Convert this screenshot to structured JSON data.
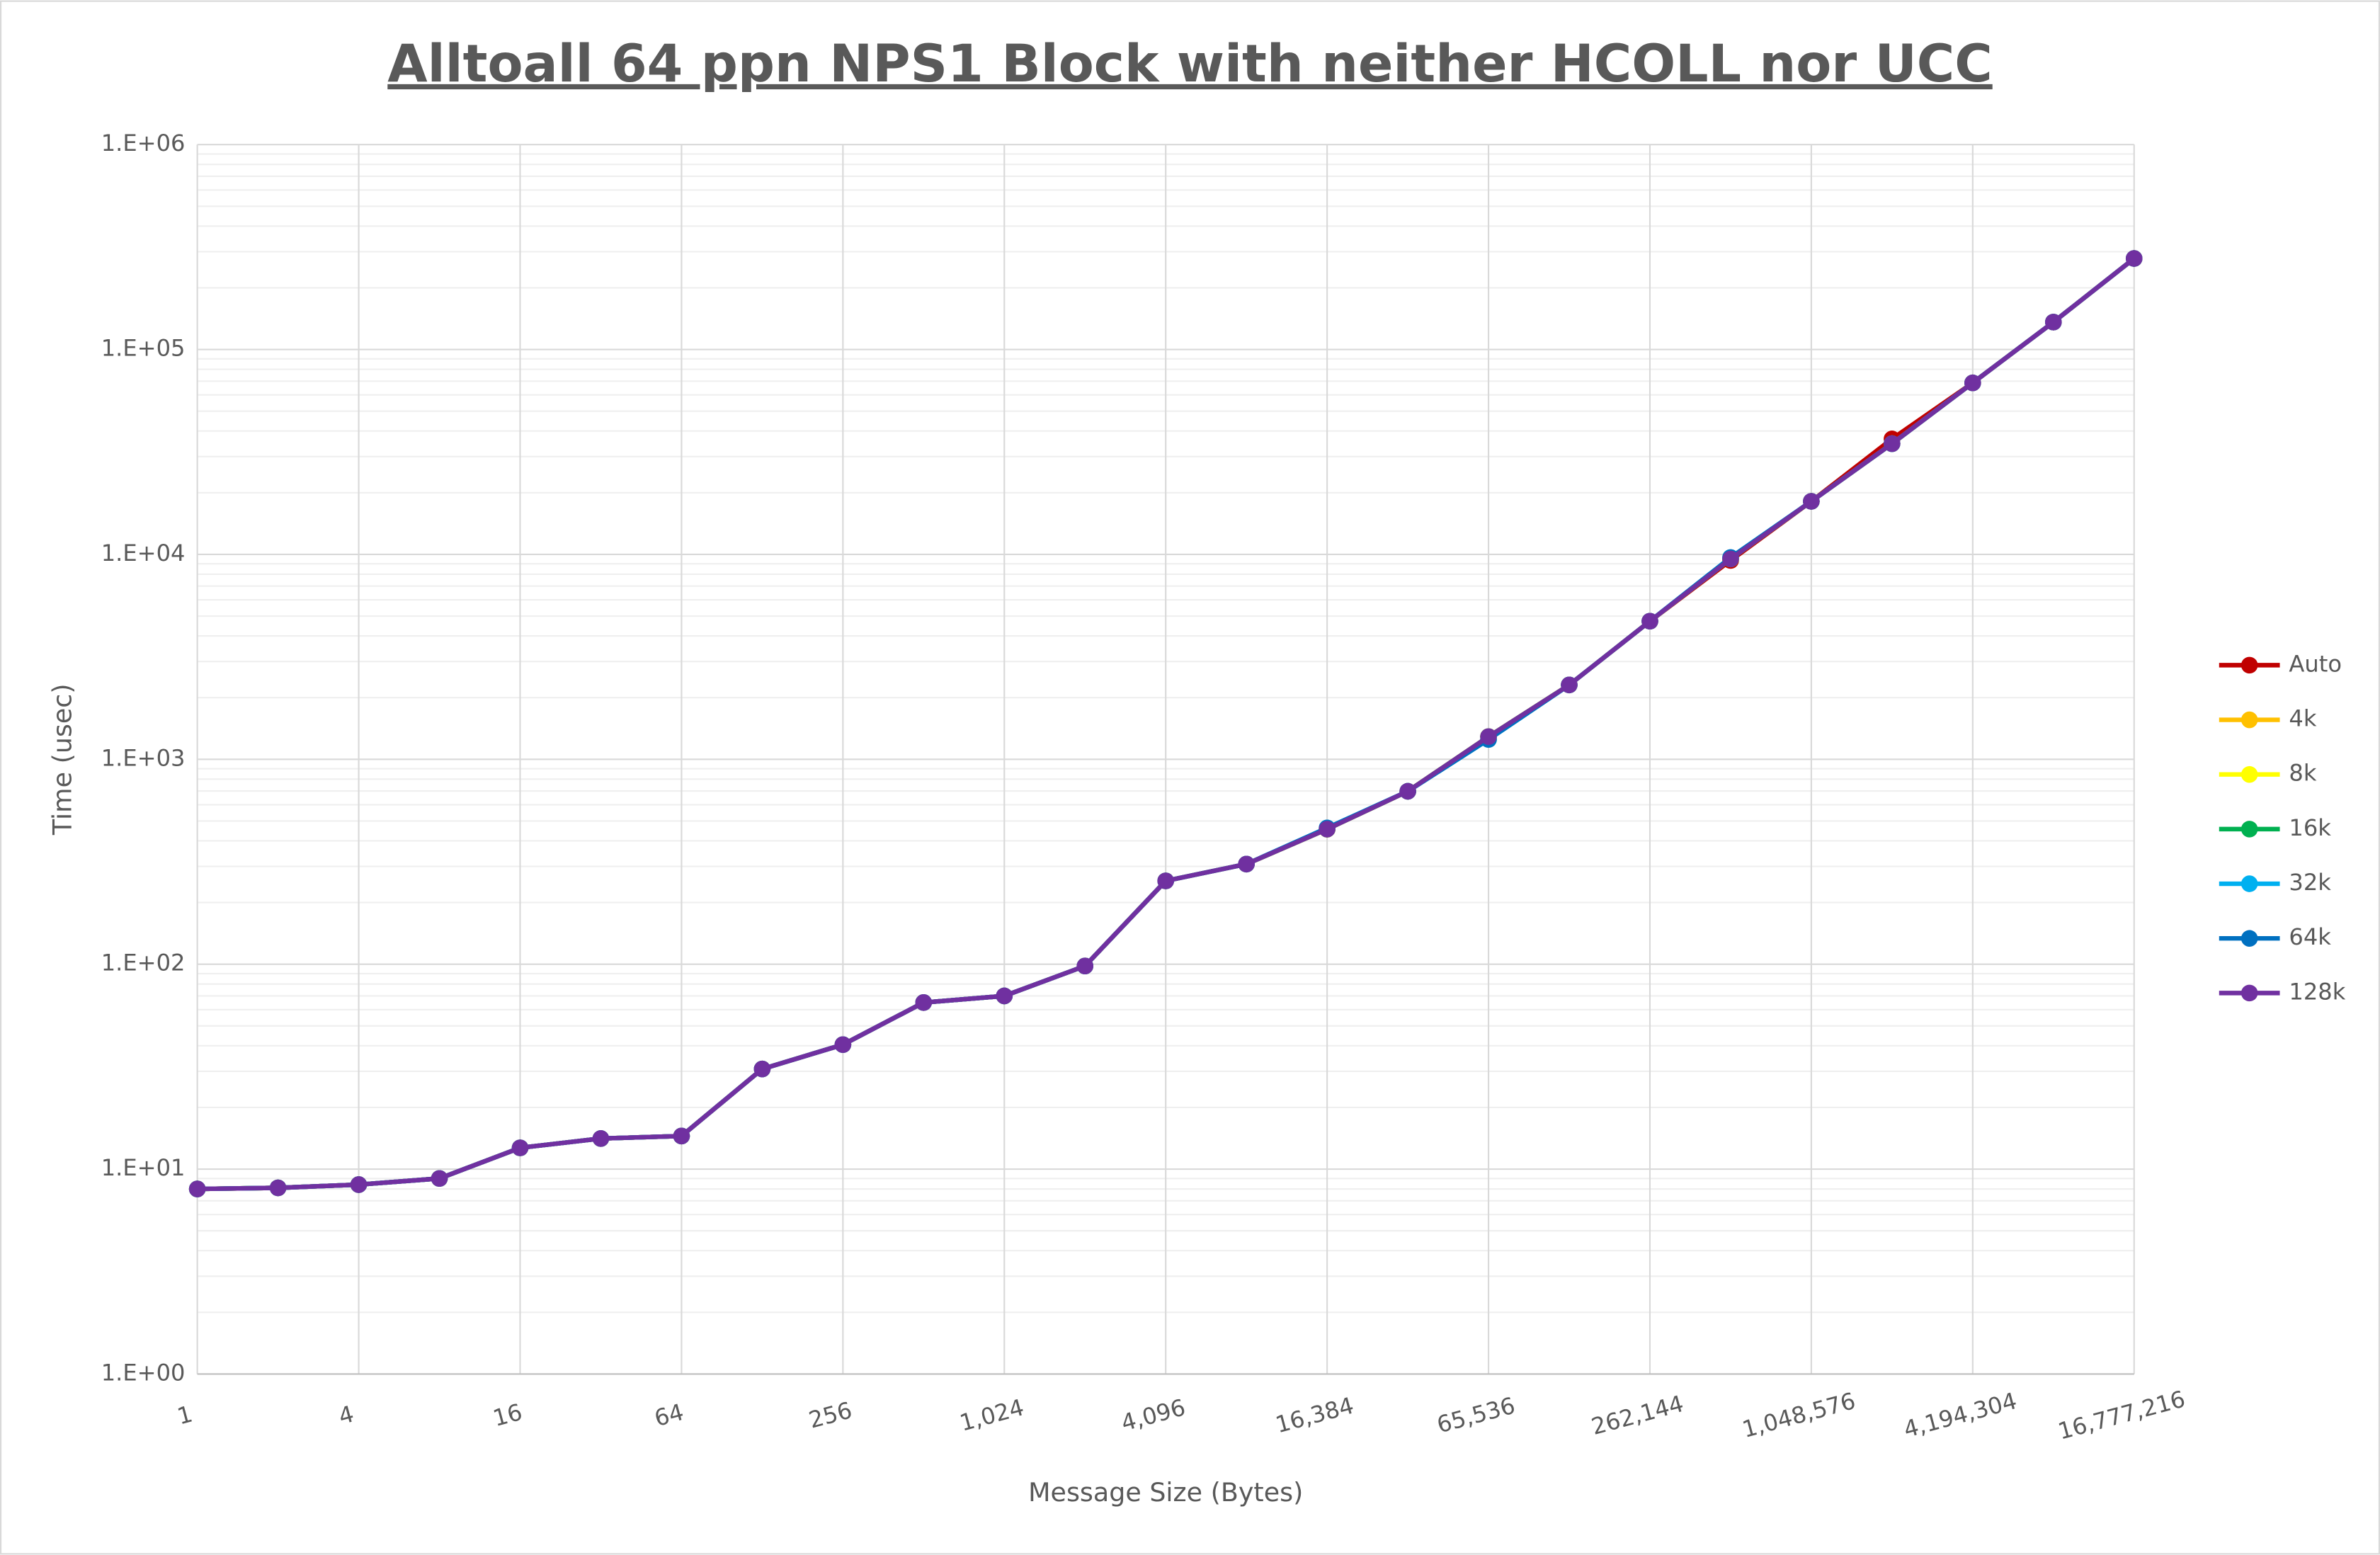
{
  "chart_data": {
    "type": "line",
    "title": "Alltoall 64 ppn NPS1 Block with neither HCOLL nor UCC",
    "x_label": "Message Size (Bytes)",
    "y_label": "Time (usec)",
    "x": [
      1,
      2,
      4,
      8,
      16,
      32,
      64,
      128,
      256,
      512,
      1024,
      2048,
      4096,
      8192,
      16384,
      32768,
      65536,
      131072,
      262144,
      524288,
      1048576,
      2097152,
      4194304,
      8388608,
      16777216
    ],
    "xlim": [
      1,
      16777216
    ],
    "xticks": [
      1,
      4,
      16,
      64,
      256,
      {
        "value": 1024,
        "label": "1,024"
      },
      {
        "value": 4096,
        "label": "4,096"
      },
      {
        "value": 16384,
        "label": "16,384"
      },
      {
        "value": 65536,
        "label": "65,536"
      },
      {
        "value": 262144,
        "label": "262,144"
      },
      {
        "value": 1048576,
        "label": "1,048,576"
      },
      {
        "value": 4194304,
        "label": "4,194,304"
      },
      {
        "value": 16777216,
        "label": "16,777,216"
      }
    ],
    "xlog": true,
    "ylim": [
      1,
      1000000
    ],
    "yticks": [
      {
        "value": 1,
        "label": "1.E+00"
      },
      {
        "value": 10,
        "label": "1.E+01"
      },
      {
        "value": 100,
        "label": "1.E+02"
      },
      {
        "value": 1000,
        "label": "1.E+03"
      },
      {
        "value": 10000,
        "label": "1.E+04"
      },
      {
        "value": 100000,
        "label": "1.E+05"
      },
      {
        "value": 1000000,
        "label": "1.E+06"
      }
    ],
    "ylog": true,
    "grid": true,
    "minor_grid": true,
    "legend": "right",
    "series": [
      {
        "name": "Auto",
        "color": "#c00000",
        "values": [
          8.0,
          8.1,
          8.4,
          9.0,
          12.7,
          14.1,
          14.5,
          30.8,
          40.5,
          65,
          70,
          98,
          255,
          308,
          456,
          698,
          1290,
          2306,
          4720,
          9340,
          18150,
          36600,
          68700,
          136000,
          278000
        ]
      },
      {
        "name": "4k",
        "color": "#ffc000",
        "values": [
          8.0,
          8.1,
          8.4,
          9.0,
          12.7,
          14.1,
          14.5,
          30.8,
          40.5,
          65,
          70,
          98,
          255,
          308,
          456,
          698,
          1290,
          2306,
          4720,
          9500,
          18150,
          34700,
          68700,
          136000,
          278000
        ]
      },
      {
        "name": "8k",
        "color": "#ffff00",
        "values": [
          8.0,
          8.1,
          8.4,
          9.0,
          12.7,
          14.1,
          14.5,
          30.8,
          40.5,
          65,
          70,
          98,
          255,
          308,
          456,
          698,
          1290,
          2306,
          4720,
          9500,
          18150,
          34700,
          68700,
          136000,
          278000
        ]
      },
      {
        "name": "16k",
        "color": "#00b050",
        "values": [
          8.0,
          8.1,
          8.4,
          9.0,
          12.7,
          14.1,
          14.5,
          30.8,
          40.5,
          65,
          70,
          98,
          255,
          308,
          456,
          698,
          1290,
          2306,
          4720,
          9500,
          18150,
          34700,
          68700,
          136000,
          278000
        ]
      },
      {
        "name": "32k",
        "color": "#00b0f0",
        "values": [
          8.0,
          8.1,
          8.4,
          9.0,
          12.7,
          14.1,
          14.5,
          30.8,
          40.5,
          65,
          70,
          98,
          255,
          308,
          462,
          698,
          1250,
          2306,
          4720,
          9650,
          18150,
          34700,
          68700,
          136000,
          278000
        ]
      },
      {
        "name": "64k",
        "color": "#0070c0",
        "values": [
          8.0,
          8.1,
          8.4,
          9.0,
          12.7,
          14.1,
          14.5,
          30.8,
          40.5,
          65,
          70,
          98,
          255,
          308,
          462,
          698,
          1250,
          2306,
          4720,
          9650,
          18150,
          34700,
          68700,
          136000,
          278000
        ]
      },
      {
        "name": "128k",
        "color": "#7030a0",
        "values": [
          8.0,
          8.1,
          8.4,
          9.0,
          12.7,
          14.1,
          14.5,
          30.8,
          40.5,
          65,
          70,
          98,
          255,
          308,
          456,
          698,
          1290,
          2306,
          4720,
          9500,
          18150,
          34700,
          68700,
          136000,
          278000
        ]
      }
    ]
  }
}
